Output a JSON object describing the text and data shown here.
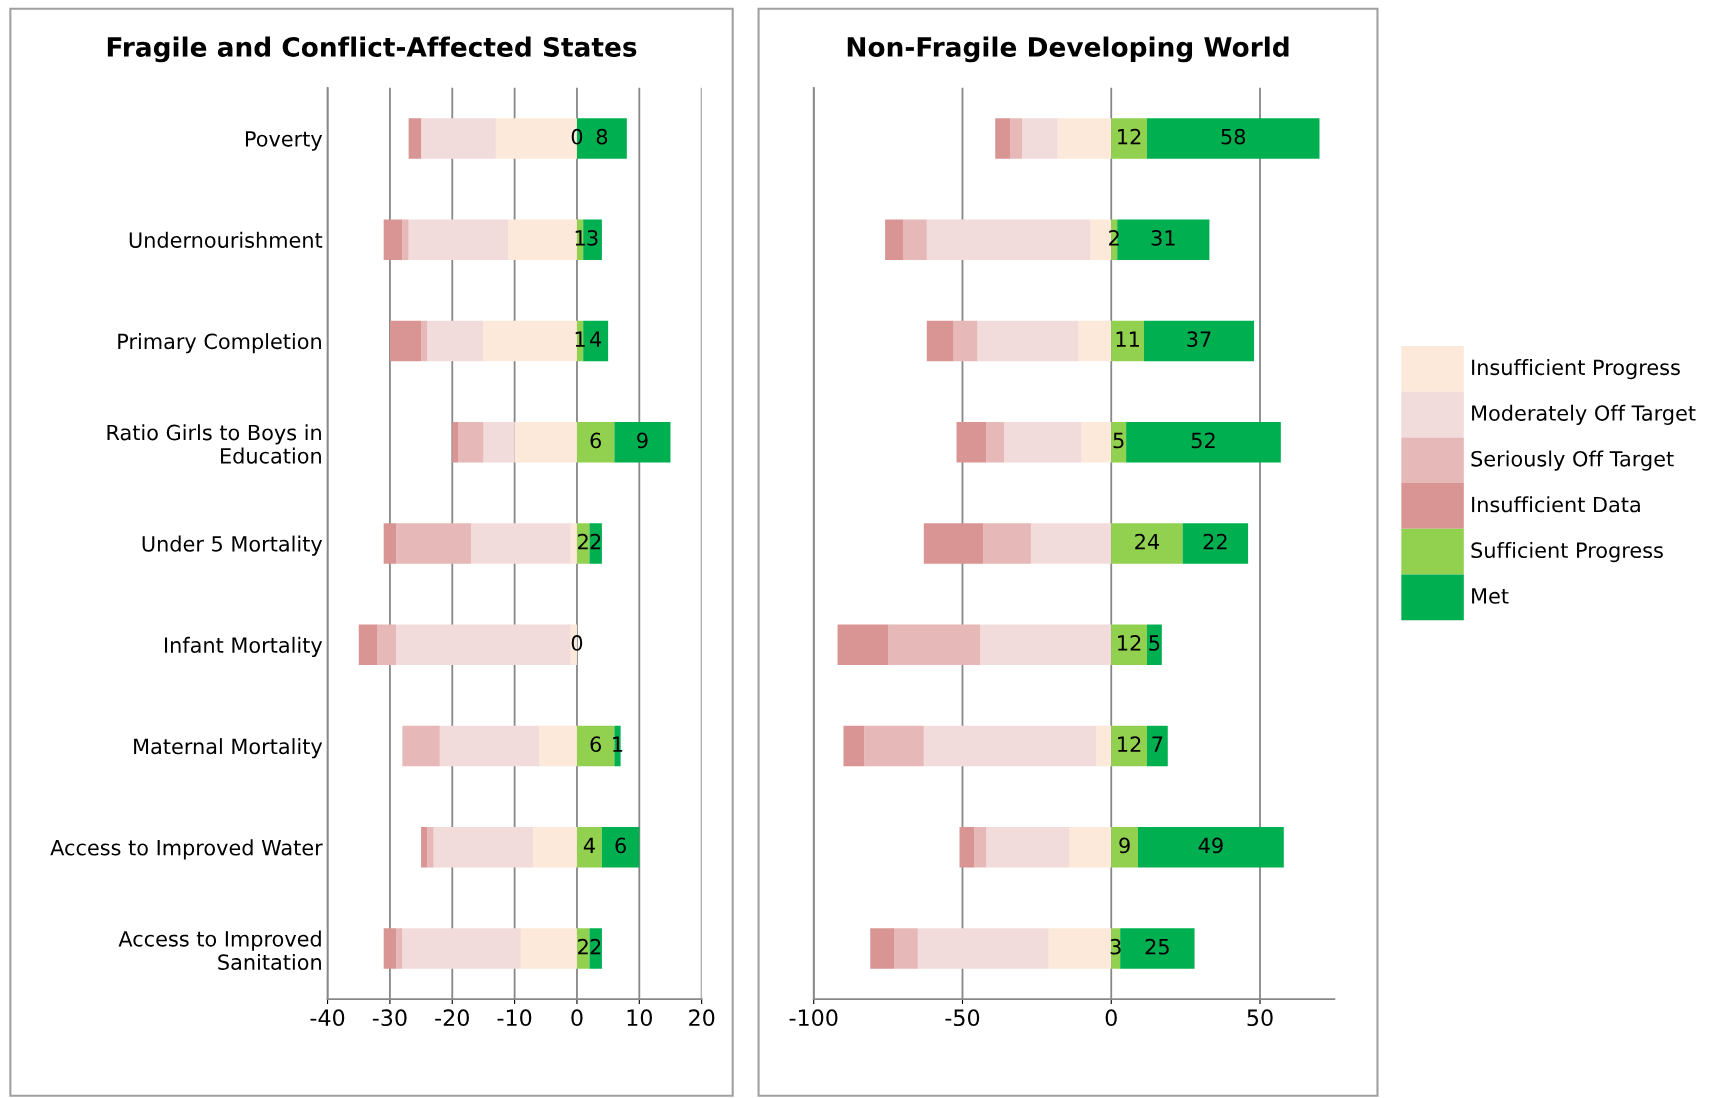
{
  "chart_data": [
    {
      "type": "bar",
      "orientation": "horizontal",
      "stacked": true,
      "title": "Fragile and Conflict-Affected States",
      "categories": [
        "Poverty",
        "Undernourishment",
        "Primary Completion",
        "Ratio Girls to Boys in\nEducation",
        "Under 5 Mortality",
        "Infant Mortality",
        "Maternal Mortality",
        "Access to Improved Water",
        "Access to Improved\nSanitation"
      ],
      "xlim": [
        -40,
        20
      ],
      "xticks": [
        -40,
        -30,
        -20,
        -10,
        0,
        10,
        20
      ],
      "grid": "x",
      "legend": "right",
      "series": [
        {
          "name": "Insufficient Progress",
          "color": "#fde9d9",
          "values": [
            -13,
            -11,
            -15,
            -10,
            -1,
            -1,
            -6,
            -7,
            -9
          ]
        },
        {
          "name": "Moderately Off Target",
          "color": "#f2dcdb",
          "values": [
            -12,
            -16,
            -9,
            -5,
            -16,
            -28,
            -16,
            -16,
            -19
          ]
        },
        {
          "name": "Seriously Off Target",
          "color": "#e6b8b7",
          "values": [
            0,
            -1,
            -1,
            -4,
            -12,
            -3,
            -6,
            -1,
            -1
          ]
        },
        {
          "name": "Insufficient Data",
          "color": "#d99594",
          "values": [
            -2,
            -3,
            -5,
            -1,
            -2,
            -3,
            0,
            -1,
            -2
          ]
        },
        {
          "name": "Sufficient Progress",
          "color": "#92d050",
          "values": [
            0,
            1,
            1,
            6,
            2,
            0,
            6,
            4,
            2
          ],
          "value_labels": [
            "0",
            "1",
            "1",
            "6",
            "2",
            "0",
            "6",
            "4",
            "2"
          ]
        },
        {
          "name": "Met",
          "color": "#00b050",
          "values": [
            8,
            3,
            4,
            9,
            2,
            0,
            1,
            6,
            2
          ],
          "value_labels": [
            "8",
            "3",
            "4",
            "9",
            "2",
            null,
            "1",
            "6",
            "2"
          ]
        }
      ]
    },
    {
      "type": "bar",
      "orientation": "horizontal",
      "stacked": true,
      "title": "Non-Fragile Developing World",
      "categories": [
        null,
        null,
        null,
        null,
        null,
        null,
        null,
        null,
        null
      ],
      "xlim": [
        -100,
        75
      ],
      "xticks": [
        -100,
        -50,
        0,
        50
      ],
      "grid": "x",
      "legend": "right",
      "series": [
        {
          "name": "Insufficient Progress",
          "color": "#fde9d9",
          "values": [
            -18,
            -7,
            -11,
            -10,
            0,
            0,
            -5,
            -14,
            -21
          ]
        },
        {
          "name": "Moderately Off Target",
          "color": "#f2dcdb",
          "values": [
            -12,
            -55,
            -34,
            -26,
            -27,
            -44,
            -58,
            -28,
            -44
          ]
        },
        {
          "name": "Seriously Off Target",
          "color": "#e6b8b7",
          "values": [
            -4,
            -8,
            -8,
            -6,
            -16,
            -31,
            -20,
            -4,
            -8
          ]
        },
        {
          "name": "Insufficient Data",
          "color": "#d99594",
          "values": [
            -5,
            -6,
            -9,
            -10,
            -20,
            -17,
            -7,
            -5,
            -8
          ]
        },
        {
          "name": "Sufficient Progress",
          "color": "#92d050",
          "values": [
            12,
            2,
            11,
            5,
            24,
            12,
            12,
            9,
            3
          ],
          "value_labels": [
            "12",
            "2",
            "11",
            "5",
            "24",
            "12",
            "12",
            "9",
            "3"
          ]
        },
        {
          "name": "Met",
          "color": "#00b050",
          "values": [
            58,
            31,
            37,
            52,
            22,
            5,
            7,
            49,
            25
          ],
          "value_labels": [
            "58",
            "31",
            "37",
            "52",
            "22",
            "5",
            "7",
            "49",
            "25"
          ]
        }
      ]
    }
  ]
}
